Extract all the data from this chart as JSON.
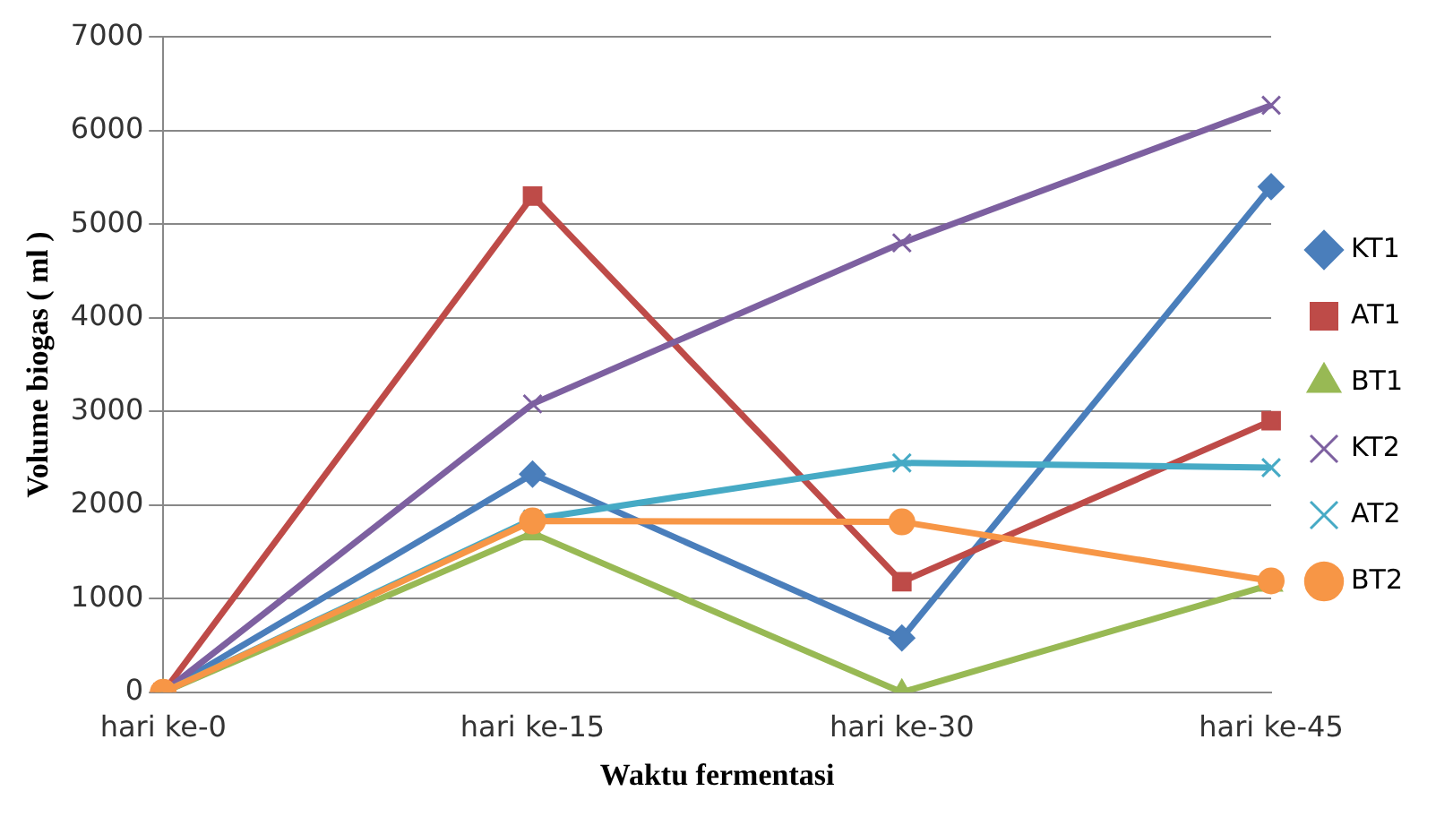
{
  "chart_data": {
    "type": "line",
    "xlabel": "Waktu fermentasi",
    "ylabel": "Volume biogas ( ml )",
    "categories": [
      "hari ke-0",
      "hari ke-15",
      "hari ke-30",
      "hari ke-45"
    ],
    "series": [
      {
        "name": "KT1",
        "color": "#4a7ebb",
        "marker": "diamond",
        "values": [
          0,
          2330,
          580,
          5400
        ]
      },
      {
        "name": "AT1",
        "color": "#be4b48",
        "marker": "square",
        "values": [
          0,
          5300,
          1180,
          2900
        ]
      },
      {
        "name": "BT1",
        "color": "#98b954",
        "marker": "triangle",
        "values": [
          0,
          1700,
          0,
          1150
        ]
      },
      {
        "name": "KT2",
        "color": "#7d60a0",
        "marker": "cross",
        "values": [
          0,
          3080,
          4800,
          6270
        ]
      },
      {
        "name": "AT2",
        "color": "#46aac5",
        "marker": "cross",
        "values": [
          0,
          1850,
          2450,
          2400
        ]
      },
      {
        "name": "BT2",
        "color": "#f79646",
        "marker": "circle",
        "values": [
          0,
          1830,
          1820,
          1190
        ]
      }
    ],
    "ylim": [
      0,
      7000
    ],
    "yticks": [
      0,
      1000,
      2000,
      3000,
      4000,
      5000,
      6000,
      7000
    ],
    "grid": "y",
    "legend": "right",
    "line_style": "solid"
  }
}
